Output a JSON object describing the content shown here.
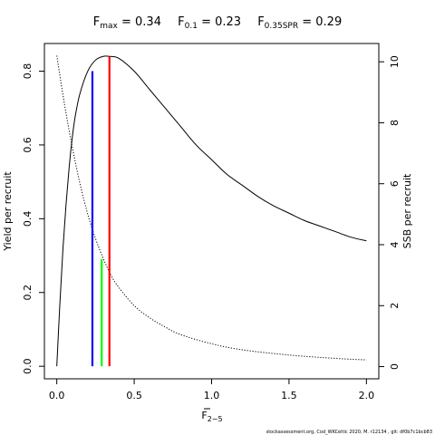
{
  "title": {
    "parts": [
      {
        "main": "F",
        "sub": "max",
        "rest": " = 0.34"
      },
      {
        "main": "F",
        "sub": "0.1",
        "rest": " = 0.23"
      },
      {
        "main": "F",
        "sub": "0.35SPR",
        "rest": " = 0.29"
      }
    ]
  },
  "footer": "stockassessment.org,  Cod_WKCeltic  2020, M. r12134 ,  git:  df0b7c1bcb83",
  "chart_data": {
    "type": "line",
    "x_axis": {
      "label_main": "F",
      "label_sub": "2−5",
      "range": [
        -0.08,
        2.08
      ],
      "ticks": [
        0,
        0.5,
        1,
        1.5,
        2
      ],
      "tick_labels": [
        "0.0",
        "0.5",
        "1.0",
        "1.5",
        "2.0"
      ]
    },
    "y_left": {
      "label": "Yield per recruit",
      "range": [
        -0.034,
        0.875
      ],
      "ticks": [
        0,
        0.2,
        0.4,
        0.6,
        0.8
      ],
      "tick_labels": [
        "0.0",
        "0.2",
        "0.4",
        "0.6",
        "0.8"
      ]
    },
    "y_right": {
      "label": "SSB per recruit",
      "range": [
        -0.4,
        10.6
      ],
      "ticks": [
        0,
        2,
        4,
        6,
        8,
        10
      ],
      "tick_labels": [
        "0",
        "2",
        "4",
        "6",
        "8",
        "10"
      ]
    },
    "grid": false,
    "series": [
      {
        "axis": "left",
        "style": "solid",
        "color": "#000000",
        "x": [
          0,
          0.02,
          0.04,
          0.06,
          0.08,
          0.1,
          0.12,
          0.15,
          0.2,
          0.25,
          0.3,
          0.34,
          0.4,
          0.5,
          0.6,
          0.7,
          0.8,
          0.9,
          1.0,
          1.1,
          1.2,
          1.3,
          1.4,
          1.5,
          1.6,
          1.7,
          1.8,
          1.9,
          2.0
        ],
        "y": [
          0.0,
          0.17,
          0.32,
          0.44,
          0.54,
          0.62,
          0.68,
          0.74,
          0.8,
          0.83,
          0.84,
          0.84,
          0.835,
          0.8,
          0.75,
          0.7,
          0.65,
          0.6,
          0.56,
          0.52,
          0.49,
          0.46,
          0.435,
          0.415,
          0.395,
          0.38,
          0.365,
          0.35,
          0.34
        ]
      },
      {
        "axis": "right",
        "style": "dotted",
        "color": "#000000",
        "x": [
          0,
          0.05,
          0.1,
          0.15,
          0.2,
          0.25,
          0.3,
          0.35,
          0.4,
          0.5,
          0.6,
          0.7,
          0.8,
          1.0,
          1.2,
          1.5,
          1.8,
          2.0
        ],
        "y": [
          10.2,
          8.6,
          7.2,
          6.0,
          5.0,
          4.2,
          3.55,
          3.0,
          2.6,
          2.0,
          1.6,
          1.3,
          1.05,
          0.75,
          0.55,
          0.38,
          0.27,
          0.22
        ]
      }
    ],
    "reference_lines": [
      {
        "name": "F0.1",
        "x": 0.23,
        "y": 0.8,
        "color": "#0000ff"
      },
      {
        "name": "F0.35SPR",
        "x": 0.29,
        "y": 0.29,
        "color": "#00ff00"
      },
      {
        "name": "Fmax",
        "x": 0.34,
        "y": 0.84,
        "color": "#ff0000"
      }
    ]
  }
}
